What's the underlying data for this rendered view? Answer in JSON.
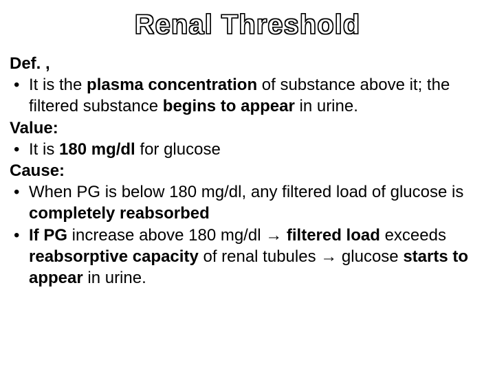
{
  "title": "Renal Threshold",
  "colors": {
    "background": "#ffffff",
    "text": "#000000",
    "title_fill": "#ffffff",
    "title_stroke": "#000000"
  },
  "typography": {
    "font_family": "Arial",
    "title_fontsize_pt": 30,
    "body_fontsize_pt": 18,
    "line_height": 1.3
  },
  "headings": {
    "def": "Def. ,",
    "value": "Value:",
    "cause": "Cause:"
  },
  "bullets": {
    "def": {
      "t1": "It is the ",
      "b1": "plasma concentration",
      "t2": " of substance above it; the filtered substance ",
      "b2": "begins to appear",
      "t3": " in urine."
    },
    "value": {
      "t1": "It is ",
      "b1": "180 mg/dl",
      "t2": " for glucose"
    },
    "cause1": {
      "t1": "When PG is below 180 mg/dl, any filtered load of glucose is ",
      "b1": "completely reabsorbed"
    },
    "cause2": {
      "b1": "If PG",
      "t1": "  increase above 180 mg/dl ",
      "arrow1": "→",
      "t2": " ",
      "b2": "filtered load",
      "t3": " exceeds ",
      "b3": "reabsorptive capacity",
      "t4": " of renal tubules ",
      "arrow2": "→",
      "t5": " glucose ",
      "b4": "starts to appear",
      "t6": " in urine."
    }
  }
}
